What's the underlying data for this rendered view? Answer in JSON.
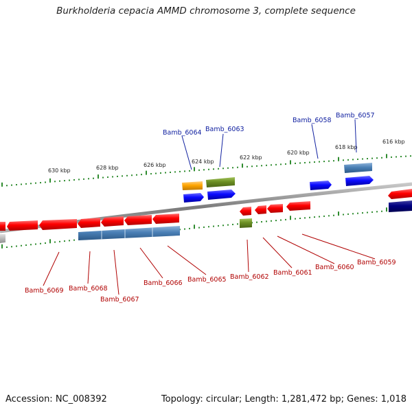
{
  "title": "Burkholderia cepacia AMMD chromosome 3, complete sequence",
  "footer": {
    "accession": "Accession: NC_008392",
    "summary": "Topology: circular; Length: 1,281,472 bp; Genes: 1,018"
  },
  "colors": {
    "backbone": "#8a8a8a",
    "tick": "#2e8b2e",
    "forward_gene": "#0a0aff",
    "reverse_gene": "#ff0000",
    "steelblue": "#4a7fb5",
    "olive": "#6b8e23",
    "orange": "#ffa500",
    "navy": "#000080",
    "label_forward": "#1020a0",
    "label_reverse": "#b00000"
  },
  "scale_labels": [
    "630 kbp",
    "628 kbp",
    "626 kbp",
    "624 kbp",
    "622 kbp",
    "620 kbp",
    "618 kbp",
    "616 kbp"
  ],
  "gene_labels_top": [
    "Bamb_6064",
    "Bamb_6063",
    "Bamb_6058",
    "Bamb_6057"
  ],
  "gene_labels_bottom": [
    "Bamb_6069",
    "Bamb_6068",
    "Bamb_6067",
    "Bamb_6066",
    "Bamb_6065",
    "Bamb_6062",
    "Bamb_6061",
    "Bamb_6060",
    "Bamb_6059"
  ]
}
